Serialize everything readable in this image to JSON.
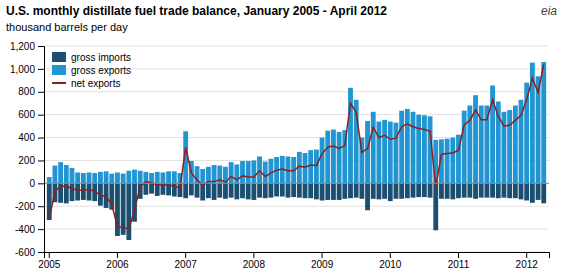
{
  "chart_data": {
    "type": "bar",
    "title": "U.S. monthly distillate fuel trade balance, January 2005 - April 2012",
    "subtitle": "thousand barrels per day",
    "annotations": [
      "eia"
    ],
    "categories": [
      "2005",
      null,
      null,
      null,
      null,
      null,
      null,
      null,
      null,
      null,
      null,
      null,
      "2006",
      null,
      null,
      null,
      null,
      null,
      null,
      null,
      null,
      null,
      null,
      null,
      "2007",
      null,
      null,
      null,
      null,
      null,
      null,
      null,
      null,
      null,
      null,
      null,
      "2008",
      null,
      null,
      null,
      null,
      null,
      null,
      null,
      null,
      null,
      null,
      null,
      "2009",
      null,
      null,
      null,
      null,
      null,
      null,
      null,
      null,
      null,
      null,
      null,
      "2010",
      null,
      null,
      null,
      null,
      null,
      null,
      null,
      null,
      null,
      null,
      null,
      "2011",
      null,
      null,
      null,
      null,
      null,
      null,
      null,
      null,
      null,
      null,
      null,
      "2012",
      null,
      null,
      null
    ],
    "series": [
      {
        "name": "gross imports",
        "color": "#1b4f72",
        "values": [
          -320,
          -165,
          -170,
          -175,
          -155,
          -150,
          -145,
          -150,
          -155,
          -195,
          -215,
          -230,
          -460,
          -450,
          -495,
          -335,
          -135,
          -100,
          -90,
          -110,
          -100,
          -105,
          -115,
          -120,
          -130,
          -105,
          -125,
          -150,
          -130,
          -145,
          -125,
          -135,
          -125,
          -140,
          -130,
          -140,
          -145,
          -125,
          -130,
          -125,
          -115,
          -115,
          -125,
          -120,
          -125,
          -130,
          -130,
          -140,
          -150,
          -145,
          -145,
          -145,
          -135,
          -130,
          -125,
          -135,
          -235,
          -135,
          -140,
          -135,
          -155,
          -135,
          -135,
          -130,
          -125,
          -120,
          -120,
          -125,
          -410,
          -135,
          -135,
          -140,
          -130,
          -125,
          -125,
          -135,
          -125,
          -125,
          -125,
          -130,
          -125,
          -130,
          -130,
          -140,
          -150,
          -170,
          -145,
          -175
        ]
      },
      {
        "name": "gross exports",
        "color": "#2196d3",
        "values": [
          55,
          155,
          185,
          160,
          135,
          95,
          90,
          95,
          90,
          100,
          105,
          85,
          95,
          85,
          110,
          120,
          110,
          100,
          90,
          100,
          95,
          105,
          105,
          90,
          455,
          195,
          150,
          125,
          145,
          160,
          155,
          145,
          185,
          165,
          195,
          195,
          200,
          235,
          190,
          215,
          230,
          240,
          235,
          230,
          275,
          265,
          290,
          295,
          400,
          460,
          470,
          450,
          465,
          835,
          730,
          400,
          545,
          625,
          540,
          555,
          540,
          530,
          635,
          650,
          625,
          600,
          595,
          585,
          380,
          385,
          390,
          400,
          425,
          635,
          680,
          770,
          680,
          680,
          855,
          715,
          625,
          640,
          680,
          730,
          880,
          1055,
          935,
          1060
        ]
      },
      {
        "name": "net exports",
        "type": "line",
        "color": "#8b2020",
        "values": [
          -310,
          -70,
          -25,
          -25,
          -45,
          -60,
          -60,
          -55,
          -70,
          -105,
          -115,
          -185,
          -380,
          -385,
          -400,
          -230,
          -30,
          15,
          5,
          -15,
          -15,
          -15,
          -25,
          -40,
          315,
          90,
          30,
          -20,
          15,
          15,
          30,
          10,
          60,
          30,
          65,
          55,
          55,
          110,
          60,
          90,
          115,
          125,
          110,
          110,
          150,
          140,
          160,
          155,
          260,
          315,
          325,
          305,
          330,
          700,
          620,
          270,
          305,
          490,
          400,
          420,
          385,
          395,
          495,
          520,
          495,
          480,
          470,
          455,
          -30,
          255,
          260,
          265,
          290,
          510,
          550,
          640,
          555,
          555,
          730,
          585,
          500,
          510,
          550,
          595,
          730,
          920,
          795,
          1040
        ]
      }
    ],
    "ylim": [
      -600,
      1200
    ],
    "yticks": [
      -600,
      -400,
      -200,
      0,
      200,
      400,
      600,
      800,
      {
        "value": 1000,
        "label": "1,000"
      },
      {
        "value": 1200,
        "label": "1,200"
      }
    ],
    "grid": true,
    "legend": "upper left"
  }
}
